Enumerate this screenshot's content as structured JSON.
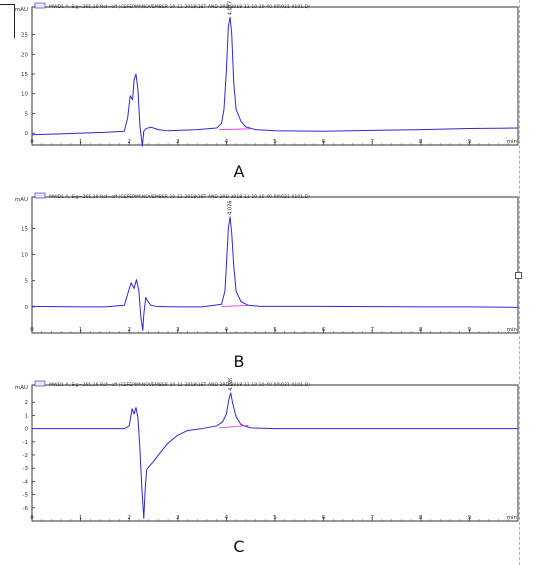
{
  "panels": [
    {
      "caption": "A",
      "legend_text": "MWD1 A, Sig=265,16 Ref=off (CEFEPIM\\NOVEMBER-10-11-2018\\1ST AND 3RD 2018-11-10 10-40-00\\031-0101.D)",
      "peak_label": "4.077"
    },
    {
      "caption": "B",
      "legend_text": "MWD1 A, Sig=265,16 Ref=off (CEFEPIM\\NOVEMBER-10-11-2018\\1ST AND 3RD 2018-11-10 10-40-00\\031-0101.D)",
      "peak_label": "4.076"
    },
    {
      "caption": "C",
      "legend_text": "MWD1 A, Sig=265,16 Ref=off (CEFEPIM\\NOVEMBER-10-11-2018\\1ST AND 3RD 2018-11-10 10-40-00\\031-0101.D)",
      "peak_label": "4.089"
    }
  ],
  "chart_data": [
    {
      "type": "line",
      "ylabel": "mAU",
      "xlabel": "min",
      "xlim": [
        0,
        10
      ],
      "ylim": [
        -3,
        32
      ],
      "x_ticks": [
        0,
        1,
        2,
        3,
        4,
        5,
        6,
        7,
        8,
        9
      ],
      "y_ticks": [
        0,
        5,
        10,
        15,
        20,
        25
      ],
      "series": [
        {
          "color": "#2a2ad8",
          "x": [
            0,
            0.5,
            1.0,
            1.5,
            1.9,
            1.97,
            2.02,
            2.07,
            2.1,
            2.14,
            2.18,
            2.22,
            2.27,
            2.3,
            2.35,
            2.45,
            2.6,
            2.8,
            3.0,
            3.4,
            3.8,
            3.9,
            3.95,
            4.0,
            4.04,
            4.077,
            4.11,
            4.15,
            4.2,
            4.3,
            4.4,
            4.6,
            5.0,
            6.0,
            7.0,
            8.0,
            9.0,
            10.0
          ],
          "y": [
            -0.4,
            -0.2,
            0,
            0.2,
            0.5,
            4,
            9.5,
            8.5,
            13.5,
            15,
            11,
            2,
            -3.3,
            0.5,
            1.2,
            1.5,
            0.9,
            0.6,
            0.7,
            0.9,
            1.3,
            2.5,
            6,
            16,
            27,
            29.4,
            25,
            13,
            6,
            3,
            1.6,
            0.9,
            0.6,
            0.5,
            0.7,
            0.9,
            1.2,
            1.3
          ]
        },
        {
          "name": "baseline",
          "color": "#e040e0",
          "x": [
            3.85,
            4.5
          ],
          "y": [
            0.9,
            1.1
          ]
        }
      ]
    },
    {
      "type": "line",
      "ylabel": "mAU",
      "xlabel": "min",
      "xlim": [
        0,
        10
      ],
      "ylim": [
        -5,
        21
      ],
      "x_ticks": [
        0,
        1,
        2,
        3,
        4,
        5,
        6,
        7,
        8,
        9
      ],
      "y_ticks": [
        0,
        5,
        10,
        15
      ],
      "series": [
        {
          "color": "#2a2ad8",
          "x": [
            0,
            0.5,
            1.0,
            1.5,
            1.9,
            1.97,
            2.04,
            2.1,
            2.15,
            2.2,
            2.24,
            2.28,
            2.3,
            2.34,
            2.38,
            2.45,
            2.55,
            2.7,
            3.0,
            3.5,
            3.9,
            3.97,
            4.0,
            4.04,
            4.076,
            4.11,
            4.15,
            4.2,
            4.3,
            4.45,
            4.7,
            5.0,
            6.0,
            7.0,
            8.0,
            9.0,
            10.0
          ],
          "y": [
            0.1,
            0.05,
            0,
            0,
            0.3,
            2.5,
            4.6,
            3.5,
            5.2,
            3,
            -2,
            -4.5,
            -1.5,
            1.8,
            1.1,
            0.3,
            0.1,
            0.05,
            0,
            0,
            0.5,
            3,
            8,
            15,
            17.2,
            14,
            8,
            3,
            1,
            0.3,
            0.1,
            0.1,
            0.1,
            0.05,
            0,
            0,
            -0.1
          ]
        },
        {
          "name": "baseline",
          "color": "#e040e0",
          "x": [
            3.9,
            4.45
          ],
          "y": [
            0.05,
            0.3
          ]
        }
      ]
    },
    {
      "type": "line",
      "ylabel": "mAU",
      "xlabel": "min",
      "xlim": [
        0,
        10
      ],
      "ylim": [
        -7,
        3.3
      ],
      "x_ticks": [
        0,
        1,
        2,
        3,
        4,
        5,
        6,
        7,
        8,
        9
      ],
      "y_ticks": [
        2,
        1,
        0,
        -1,
        -2,
        -3,
        -4,
        -5,
        -6
      ],
      "series": [
        {
          "color": "#2a2ad8",
          "x": [
            0,
            0.5,
            1.0,
            1.5,
            1.9,
            2.0,
            2.06,
            2.1,
            2.14,
            2.18,
            2.22,
            2.26,
            2.3,
            2.33,
            2.36,
            2.4,
            2.5,
            2.6,
            2.8,
            3.0,
            3.2,
            3.5,
            3.8,
            3.92,
            4.0,
            4.05,
            4.089,
            4.13,
            4.2,
            4.3,
            4.5,
            5.0,
            6.0,
            7.0,
            8.0,
            9.0,
            10.0
          ],
          "y": [
            0,
            0,
            0,
            0,
            0,
            0.2,
            1.5,
            1.1,
            1.6,
            0.8,
            -1.5,
            -4.5,
            -6.8,
            -4.5,
            -3.1,
            -2.9,
            -2.5,
            -2.0,
            -1.1,
            -0.5,
            -0.15,
            0,
            0.2,
            0.5,
            1.1,
            2.2,
            2.7,
            1.9,
            0.9,
            0.3,
            0.05,
            0,
            0,
            0,
            0,
            0,
            0
          ]
        },
        {
          "name": "baseline",
          "color": "#e040e0",
          "x": [
            3.85,
            4.45
          ],
          "y": [
            0.05,
            0.25
          ]
        }
      ]
    }
  ]
}
